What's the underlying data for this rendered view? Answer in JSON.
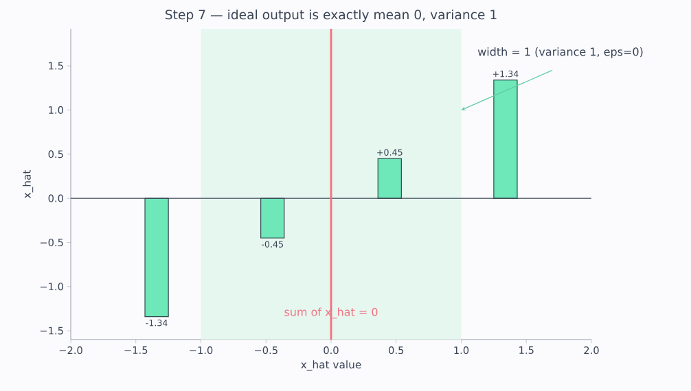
{
  "chart_data": {
    "type": "bar",
    "title": "Step 7 — ideal output is exactly mean 0, variance 1",
    "xlabel": "x_hat value",
    "ylabel": "x_hat",
    "x": [
      -1.34,
      -0.45,
      0.45,
      1.34
    ],
    "values": [
      -1.34,
      -0.45,
      0.45,
      1.34
    ],
    "value_labels": [
      "-1.34",
      "-0.45",
      "+0.45",
      "+1.34"
    ],
    "color": "#6ee8b8",
    "xlim": [
      -2,
      2
    ],
    "ylim": [
      -1.6,
      1.92
    ],
    "xticks": [
      {
        "value": -2,
        "label": "−2.0"
      },
      {
        "value": -1.5,
        "label": "−1.5"
      },
      {
        "value": -1,
        "label": "−1.0"
      },
      {
        "value": -0.5,
        "label": "−0.5"
      },
      {
        "value": 0,
        "label": "0.0"
      },
      {
        "value": 0.5,
        "label": "0.5"
      },
      {
        "value": 1,
        "label": "1.0"
      },
      {
        "value": 1.5,
        "label": "1.5"
      },
      {
        "value": 2,
        "label": "2.0"
      }
    ],
    "yticks": [
      {
        "value": -1.5,
        "label": "−1.5"
      },
      {
        "value": -1,
        "label": "−1.0"
      },
      {
        "value": -0.5,
        "label": "−0.5"
      },
      {
        "value": 0,
        "label": "0.0"
      },
      {
        "value": 0.5,
        "label": "0.5"
      },
      {
        "value": 1,
        "label": "1.0"
      },
      {
        "value": 1.5,
        "label": "1.5"
      }
    ],
    "bands": [
      {
        "axis": "x",
        "from": -1,
        "to": 1,
        "color": "#e6f7ef"
      }
    ],
    "ref_lines": [
      {
        "axis": "y",
        "value": 0,
        "color": "#3a4556"
      },
      {
        "axis": "x",
        "value": 0,
        "color": "#f07484",
        "label": "sum of x_hat = 0"
      }
    ],
    "annotations": [
      {
        "text": "width = 1  (variance 1, eps=0)",
        "x": 1,
        "y": 1
      }
    ]
  }
}
